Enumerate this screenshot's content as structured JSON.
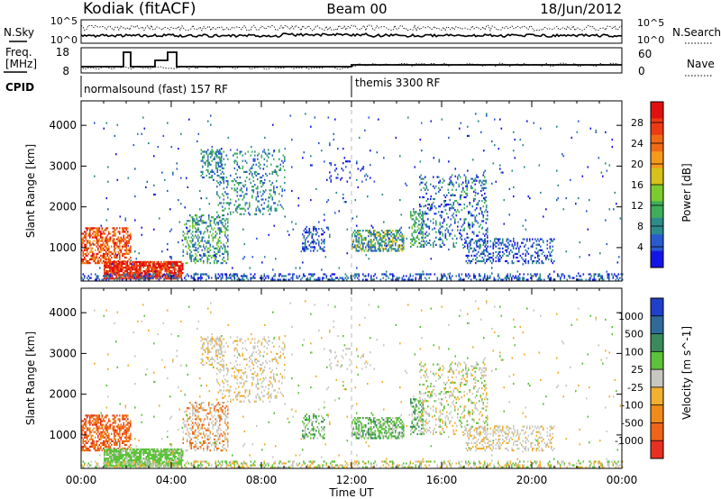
{
  "header": {
    "station": "Kodiak (fitACF)",
    "beam": "Beam 00",
    "date": "18/Jun/2012"
  },
  "noise_panel": {
    "left_label": "N.Sky",
    "right_label": "N.Search",
    "left_ticks": [
      "10^5",
      "10^0"
    ],
    "right_ticks": [
      "10^5",
      "10^0"
    ]
  },
  "freq_panel": {
    "left_label_1": "Freq.",
    "left_label_2": "[MHz]",
    "right_label": "Nave",
    "left_ticks": [
      "18",
      "8"
    ],
    "right_ticks": [
      "60",
      "0"
    ]
  },
  "cpid_panel": {
    "label": "CPID",
    "segments": [
      {
        "start_hour": 0.0,
        "text": "normalsound (fast) 157 RF"
      },
      {
        "start_hour": 12.0,
        "text": "themis 3300 RF"
      }
    ]
  },
  "xaxis": {
    "title": "Time UT",
    "ticks": [
      "00:00",
      "04:00",
      "08:00",
      "12:00",
      "16:00",
      "20:00",
      "00:00"
    ]
  },
  "chart_data": [
    {
      "type": "heatmap",
      "name": "Power",
      "ylabel": "Slant Range [km]",
      "yticks": [
        "1000",
        "2000",
        "3000",
        "4000"
      ],
      "ylim": [
        180,
        4600
      ],
      "xlim_hours": [
        0,
        24
      ],
      "colorbar": {
        "label": "Power [dB]",
        "ticks": [
          "4",
          "8",
          "12",
          "16",
          "20",
          "24",
          "28"
        ],
        "colors": [
          "#1414e6",
          "#2a5ad0",
          "#2e8b8b",
          "#3fae5a",
          "#7ccc2e",
          "#d6c21a",
          "#f59a1a",
          "#f06a14",
          "#ee3a12",
          "#e01010"
        ]
      }
    },
    {
      "type": "heatmap",
      "name": "Velocity",
      "ylabel": "Slant Range [km]",
      "yticks": [
        "1000",
        "2000",
        "3000",
        "4000"
      ],
      "ylim": [
        180,
        4600
      ],
      "xlim_hours": [
        0,
        24
      ],
      "colorbar": {
        "label": "Velocity [m s^-1]",
        "ticks": [
          "1000",
          "500",
          "100",
          "25",
          "-25",
          "-100",
          "-500",
          "-1000"
        ],
        "colors": [
          "#2040c8",
          "#2f6b9a",
          "#3a8a5c",
          "#5cc23a",
          "#c8c8c0",
          "#f0b030",
          "#f08a18",
          "#f06418",
          "#e83020"
        ]
      }
    }
  ]
}
